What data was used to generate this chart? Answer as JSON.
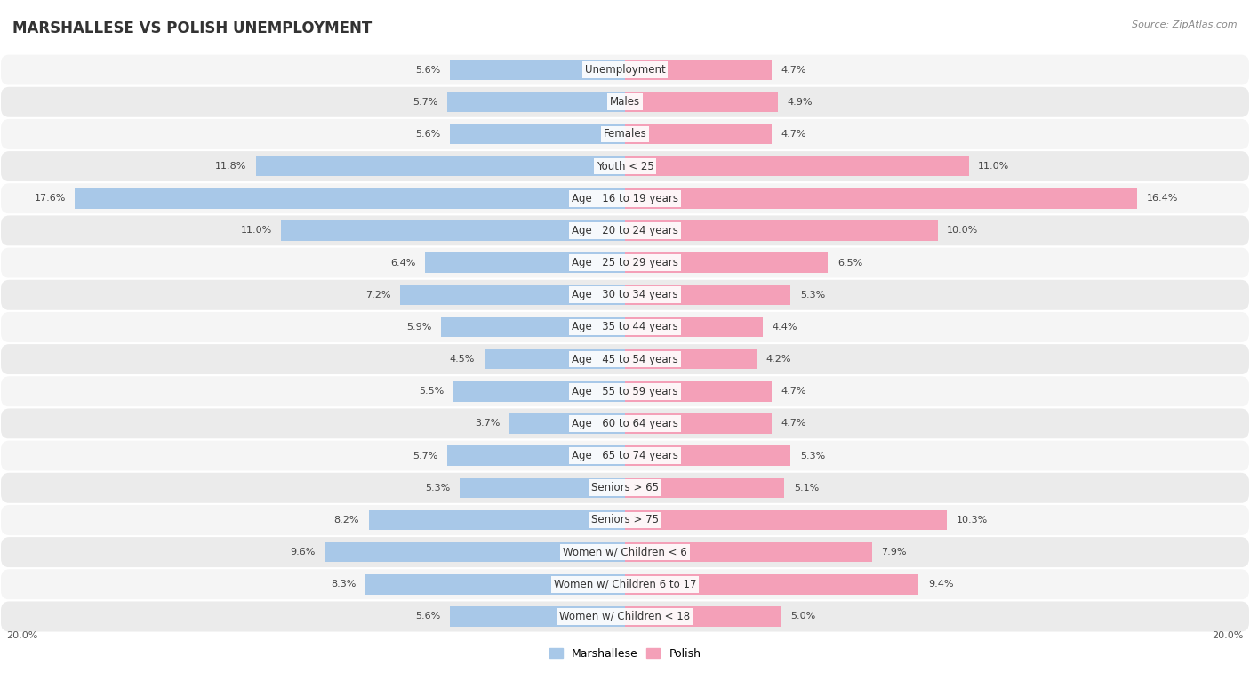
{
  "title": "MARSHALLESE VS POLISH UNEMPLOYMENT",
  "source": "Source: ZipAtlas.com",
  "categories": [
    "Unemployment",
    "Males",
    "Females",
    "Youth < 25",
    "Age | 16 to 19 years",
    "Age | 20 to 24 years",
    "Age | 25 to 29 years",
    "Age | 30 to 34 years",
    "Age | 35 to 44 years",
    "Age | 45 to 54 years",
    "Age | 55 to 59 years",
    "Age | 60 to 64 years",
    "Age | 65 to 74 years",
    "Seniors > 65",
    "Seniors > 75",
    "Women w/ Children < 6",
    "Women w/ Children 6 to 17",
    "Women w/ Children < 18"
  ],
  "marshallese": [
    5.6,
    5.7,
    5.6,
    11.8,
    17.6,
    11.0,
    6.4,
    7.2,
    5.9,
    4.5,
    5.5,
    3.7,
    5.7,
    5.3,
    8.2,
    9.6,
    8.3,
    5.6
  ],
  "polish": [
    4.7,
    4.9,
    4.7,
    11.0,
    16.4,
    10.0,
    6.5,
    5.3,
    4.4,
    4.2,
    4.7,
    4.7,
    5.3,
    5.1,
    10.3,
    7.9,
    9.4,
    5.0
  ],
  "max_val": 20.0,
  "marshallese_color": "#a8c8e8",
  "polish_color": "#f4a0b8",
  "row_bg_odd": "#f5f5f5",
  "row_bg_even": "#ebebeb",
  "label_fontsize": 8.5,
  "title_fontsize": 12,
  "value_fontsize": 8,
  "legend_marshallese": "Marshallese",
  "legend_polish": "Polish",
  "bar_height": 0.62
}
